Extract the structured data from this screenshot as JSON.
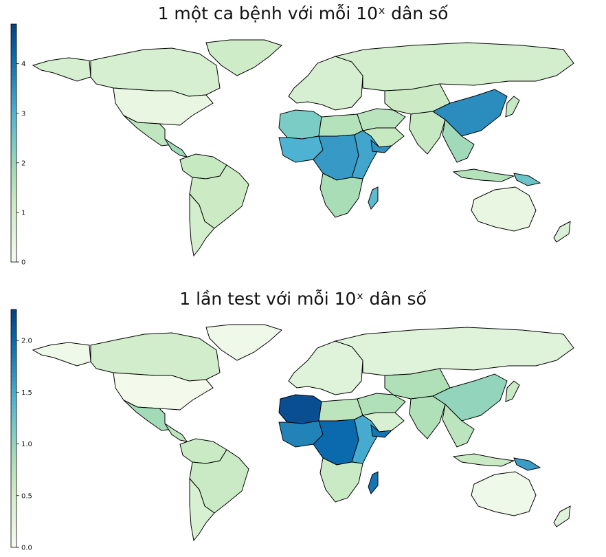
{
  "maps": [
    {
      "title": "1 một ca bệnh với mỗi 10ˣ dân số",
      "colorbar": {
        "min": 0,
        "max": 4.8,
        "ticks": [
          0,
          1,
          2,
          3,
          4
        ],
        "tick_labels": [
          "0",
          "1",
          "2",
          "3",
          "4"
        ]
      },
      "regions": [
        {
          "name": "canada",
          "value": 0.9
        },
        {
          "name": "alaska",
          "value": 0.9
        },
        {
          "name": "greenland",
          "value": 1.1
        },
        {
          "name": "usa",
          "value": 0.4
        },
        {
          "name": "mexico",
          "value": 1.4
        },
        {
          "name": "central-america",
          "value": 1.9
        },
        {
          "name": "south-america-north",
          "value": 1.3
        },
        {
          "name": "brazil",
          "value": 1.2
        },
        {
          "name": "south-america-south",
          "value": 1.0
        },
        {
          "name": "europe",
          "value": 0.9
        },
        {
          "name": "russia",
          "value": 1.0
        },
        {
          "name": "north-africa-west",
          "value": 2.4
        },
        {
          "name": "north-africa-east",
          "value": 1.6
        },
        {
          "name": "west-africa",
          "value": 3.0
        },
        {
          "name": "central-africa",
          "value": 3.4
        },
        {
          "name": "east-africa",
          "value": 3.2
        },
        {
          "name": "southern-africa",
          "value": 1.8
        },
        {
          "name": "madagascar",
          "value": 2.8
        },
        {
          "name": "middle-east",
          "value": 1.5
        },
        {
          "name": "arabia",
          "value": 1.3
        },
        {
          "name": "yemen",
          "value": 3.5
        },
        {
          "name": "central-asia",
          "value": 1.2
        },
        {
          "name": "india",
          "value": 1.3
        },
        {
          "name": "china",
          "value": 3.6
        },
        {
          "name": "southeast-asia",
          "value": 1.9
        },
        {
          "name": "indonesia",
          "value": 1.6
        },
        {
          "name": "png",
          "value": 2.6
        },
        {
          "name": "japan",
          "value": 1.3
        },
        {
          "name": "australia",
          "value": 0.4
        },
        {
          "name": "new-zealand",
          "value": 0.8
        }
      ]
    },
    {
      "title": "1 lần test với mỗi 10ˣ dân số",
      "colorbar": {
        "min": 0,
        "max": 2.3,
        "ticks": [
          0,
          0.5,
          1.0,
          1.5,
          2.0
        ],
        "tick_labels": [
          "0.0",
          "0.5",
          "1.0",
          "1.5",
          "2.0"
        ]
      },
      "regions": [
        {
          "name": "canada",
          "value": 0.5
        },
        {
          "name": "alaska",
          "value": 0.1
        },
        {
          "name": "greenland",
          "value": 0.1
        },
        {
          "name": "usa",
          "value": 0.05
        },
        {
          "name": "mexico",
          "value": 0.9
        },
        {
          "name": "central-america",
          "value": 0.7
        },
        {
          "name": "south-america-north",
          "value": 0.6
        },
        {
          "name": "brazil",
          "value": 0.6
        },
        {
          "name": "south-america-south",
          "value": 0.4
        },
        {
          "name": "europe",
          "value": 0.3
        },
        {
          "name": "russia",
          "value": 0.3
        },
        {
          "name": "north-africa-west",
          "value": 2.2
        },
        {
          "name": "north-africa-east",
          "value": 0.7
        },
        {
          "name": "west-africa",
          "value": 1.8
        },
        {
          "name": "central-africa",
          "value": 2.0
        },
        {
          "name": "east-africa",
          "value": 1.5
        },
        {
          "name": "southern-africa",
          "value": 0.6
        },
        {
          "name": "madagascar",
          "value": 1.9
        },
        {
          "name": "middle-east",
          "value": 0.8
        },
        {
          "name": "arabia",
          "value": 0.4
        },
        {
          "name": "yemen",
          "value": 1.9
        },
        {
          "name": "central-asia",
          "value": 0.8
        },
        {
          "name": "india",
          "value": 0.8
        },
        {
          "name": "china",
          "value": 1.0
        },
        {
          "name": "southeast-asia",
          "value": 0.7
        },
        {
          "name": "indonesia",
          "value": 0.6
        },
        {
          "name": "png",
          "value": 1.6
        },
        {
          "name": "japan",
          "value": 0.6
        },
        {
          "name": "australia",
          "value": 0.1
        },
        {
          "name": "new-zealand",
          "value": 0.3
        }
      ]
    }
  ],
  "colormap": [
    "#f7fcf0",
    "#e0f3db",
    "#ccebc5",
    "#a8ddb5",
    "#7bccc4",
    "#4eb3d3",
    "#2b8cbe",
    "#0868ac",
    "#084081"
  ]
}
